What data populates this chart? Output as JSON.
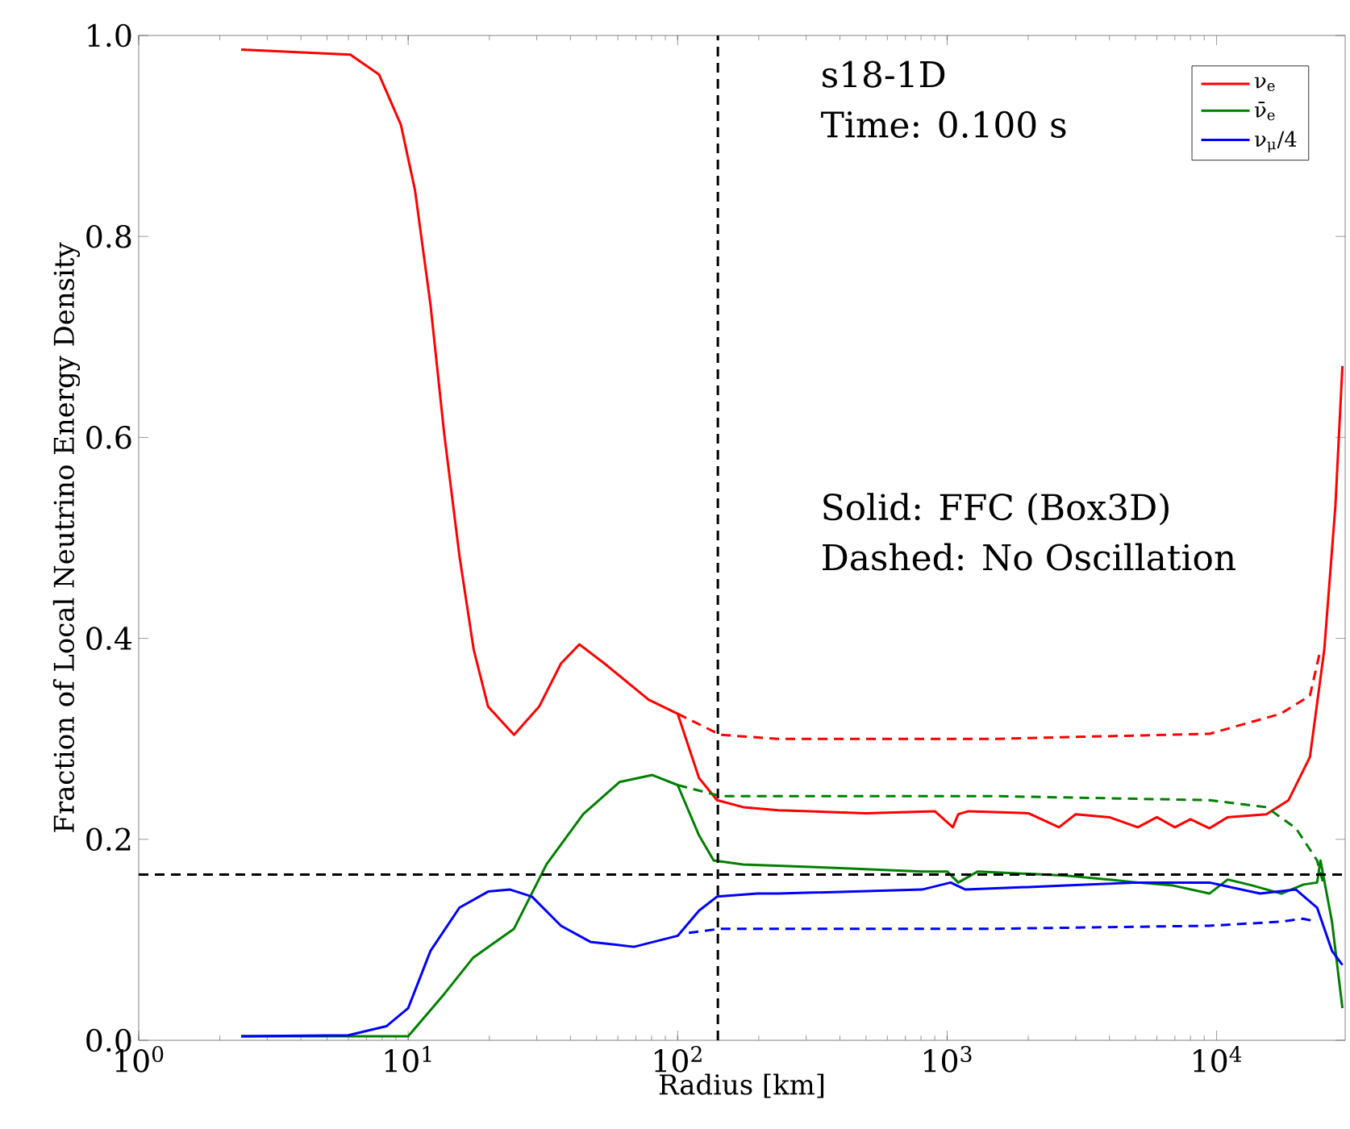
{
  "chart_data": {
    "type": "line",
    "xlabel": "Radius [km]",
    "ylabel": "Fraction of Local Neutrino Energy Density",
    "log": "x",
    "xlim": [
      1,
      30000
    ],
    "ylim": [
      0,
      1
    ],
    "xticks": [
      {
        "value": 1,
        "label": "10$^{0}$"
      },
      {
        "value": 10,
        "label": "10$^{1}$"
      },
      {
        "value": 100,
        "label": "10$^{2}$"
      },
      {
        "value": 1000,
        "label": "10$^{3}$"
      },
      {
        "value": 10000,
        "label": "10$^{4}$"
      }
    ],
    "yticks": [
      {
        "value": 0,
        "label": "0.0"
      },
      {
        "value": 0.2,
        "label": "0.2"
      },
      {
        "value": 0.4,
        "label": "0.4"
      },
      {
        "value": 0.6,
        "label": "0.6"
      },
      {
        "value": 0.8,
        "label": "0.8"
      },
      {
        "value": 1,
        "label": "1.0"
      }
    ],
    "legend": "top right",
    "annotations": [
      "s18-1D",
      "Time: 0.100 s",
      "Solid: FFC (Box3D)",
      "Dashed: No Oscillation"
    ],
    "ref_lines": [
      {
        "axis": "x",
        "value": 141,
        "line_style": "dashed",
        "color": "#000000"
      },
      {
        "axis": "y",
        "value": 0.165,
        "line_style": "dashed",
        "color": "#000000"
      }
    ],
    "series": [
      {
        "name": "ν$_{e}$",
        "color": "#ff0000",
        "line_style": "solid",
        "x": [
          2.4,
          6.1,
          7.8,
          9.4,
          10.6,
          12.1,
          13.6,
          15.5,
          17.5,
          19.8,
          24.7,
          30.6,
          36.9,
          43.2,
          53.5,
          78,
          100,
          120,
          140,
          175,
          236,
          500,
          900,
          1050,
          1100,
          1200,
          2000,
          2600,
          3000,
          4000,
          5100,
          6000,
          7000,
          8000,
          9400,
          11000,
          15300,
          18500,
          22200,
          25100,
          27600,
          29300
        ],
        "values": [
          0.986,
          0.981,
          0.961,
          0.911,
          0.846,
          0.732,
          0.604,
          0.482,
          0.389,
          0.332,
          0.304,
          0.332,
          0.375,
          0.394,
          0.375,
          0.339,
          0.325,
          0.261,
          0.239,
          0.232,
          0.229,
          0.226,
          0.228,
          0.212,
          0.225,
          0.228,
          0.226,
          0.212,
          0.225,
          0.222,
          0.212,
          0.222,
          0.212,
          0.22,
          0.211,
          0.222,
          0.225,
          0.239,
          0.282,
          0.389,
          0.532,
          0.671
        ]
      },
      {
        "name": "ν̄$_{e}$",
        "color": "#008000",
        "line_style": "solid",
        "x": [
          2.4,
          8.3,
          10,
          13.6,
          17.4,
          24.7,
          32.6,
          44.6,
          60.8,
          80.6,
          100,
          120,
          136,
          175,
          437,
          807,
          1000,
          1100,
          1300,
          2750,
          4000,
          5100,
          6900,
          9400,
          11000,
          13600,
          17400,
          21000,
          23600,
          24300,
          26800,
          29300
        ],
        "values": [
          0.004,
          0.004,
          0.004,
          0.046,
          0.082,
          0.111,
          0.175,
          0.225,
          0.257,
          0.264,
          0.254,
          0.204,
          0.179,
          0.175,
          0.171,
          0.168,
          0.168,
          0.157,
          0.168,
          0.164,
          0.16,
          0.157,
          0.154,
          0.146,
          0.16,
          0.154,
          0.146,
          0.155,
          0.157,
          0.179,
          0.118,
          0.032
        ]
      },
      {
        "name": "ν$_{μ}$/4",
        "color": "#0000ff",
        "line_style": "solid",
        "x": [
          2.4,
          6,
          8.3,
          10,
          12.1,
          15.5,
          19.8,
          23.9,
          28.8,
          36.9,
          47.4,
          68.8,
          100,
          120,
          140,
          198,
          236,
          807,
          1030,
          1170,
          2750,
          5100,
          9400,
          14500,
          19700,
          23600,
          26800,
          29300
        ],
        "values": [
          0.004,
          0.005,
          0.014,
          0.032,
          0.089,
          0.132,
          0.148,
          0.15,
          0.143,
          0.114,
          0.098,
          0.093,
          0.104,
          0.129,
          0.143,
          0.146,
          0.146,
          0.15,
          0.157,
          0.15,
          0.154,
          0.157,
          0.157,
          0.146,
          0.15,
          0.132,
          0.089,
          0.075
        ]
      },
      {
        "color": "#ff0000",
        "line_style": "dashed",
        "x": [
          100,
          144,
          236,
          1490,
          9400,
          17300,
          22200,
          24300
        ],
        "values": [
          0.325,
          0.304,
          0.3,
          0.3,
          0.305,
          0.325,
          0.343,
          0.389
        ]
      },
      {
        "color": "#008000",
        "line_style": "dashed",
        "x": [
          100,
          144,
          236,
          1490,
          9400,
          15300,
          19700,
          23600,
          25000
        ],
        "values": [
          0.254,
          0.243,
          0.243,
          0.243,
          0.239,
          0.232,
          0.211,
          0.179,
          0.154
        ]
      },
      {
        "color": "#0000ff",
        "line_style": "dashed",
        "x": [
          110,
          144,
          236,
          1490,
          9400,
          17300,
          20900,
          23600
        ],
        "values": [
          0.107,
          0.111,
          0.111,
          0.111,
          0.114,
          0.118,
          0.121,
          0.118
        ]
      }
    ]
  }
}
